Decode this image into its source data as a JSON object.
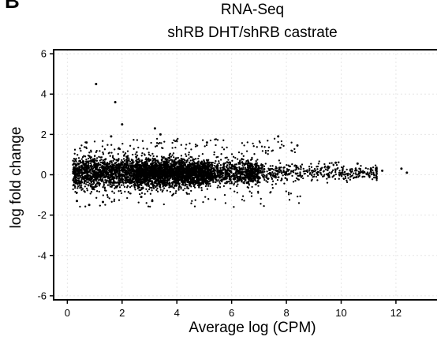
{
  "panel_label": "B",
  "chart_data": {
    "type": "scatter",
    "title": "RNA-Seq",
    "subtitle": "shRB DHT/shRB castrate",
    "xlabel": "Average log (CPM)",
    "ylabel": "log fold change",
    "xlim": [
      -0.5,
      13.5
    ],
    "ylim": [
      -6.2,
      6.2
    ],
    "xticks": [
      0,
      2,
      4,
      6,
      8,
      10,
      12
    ],
    "yticks": [
      -6,
      -4,
      -2,
      0,
      2,
      4,
      6
    ],
    "grid": true,
    "marker_color": "#000000",
    "density": {
      "description_free": true,
      "x_range": [
        0.1,
        12.5
      ],
      "center_y": 0.1
    },
    "outliers": [
      {
        "x": 1.05,
        "y": 4.5
      },
      {
        "x": 1.75,
        "y": 3.6
      },
      {
        "x": 2.0,
        "y": 2.5
      },
      {
        "x": 3.2,
        "y": 2.3
      },
      {
        "x": 3.4,
        "y": 2.0
      },
      {
        "x": 1.6,
        "y": 1.9
      },
      {
        "x": 0.7,
        "y": 1.6
      },
      {
        "x": 5.1,
        "y": 1.6
      },
      {
        "x": 7.7,
        "y": 1.9
      },
      {
        "x": 8.4,
        "y": 1.45
      },
      {
        "x": 0.35,
        "y": -1.3
      },
      {
        "x": 1.3,
        "y": -1.35
      },
      {
        "x": 0.8,
        "y": -1.5
      },
      {
        "x": 2.7,
        "y": -1.1
      },
      {
        "x": 3.1,
        "y": -1.3
      },
      {
        "x": 11.5,
        "y": 0.2
      },
      {
        "x": 12.2,
        "y": 0.3
      },
      {
        "x": 12.4,
        "y": 0.1
      },
      {
        "x": 9.8,
        "y": 0.6
      },
      {
        "x": 10.6,
        "y": 0.55
      }
    ]
  }
}
